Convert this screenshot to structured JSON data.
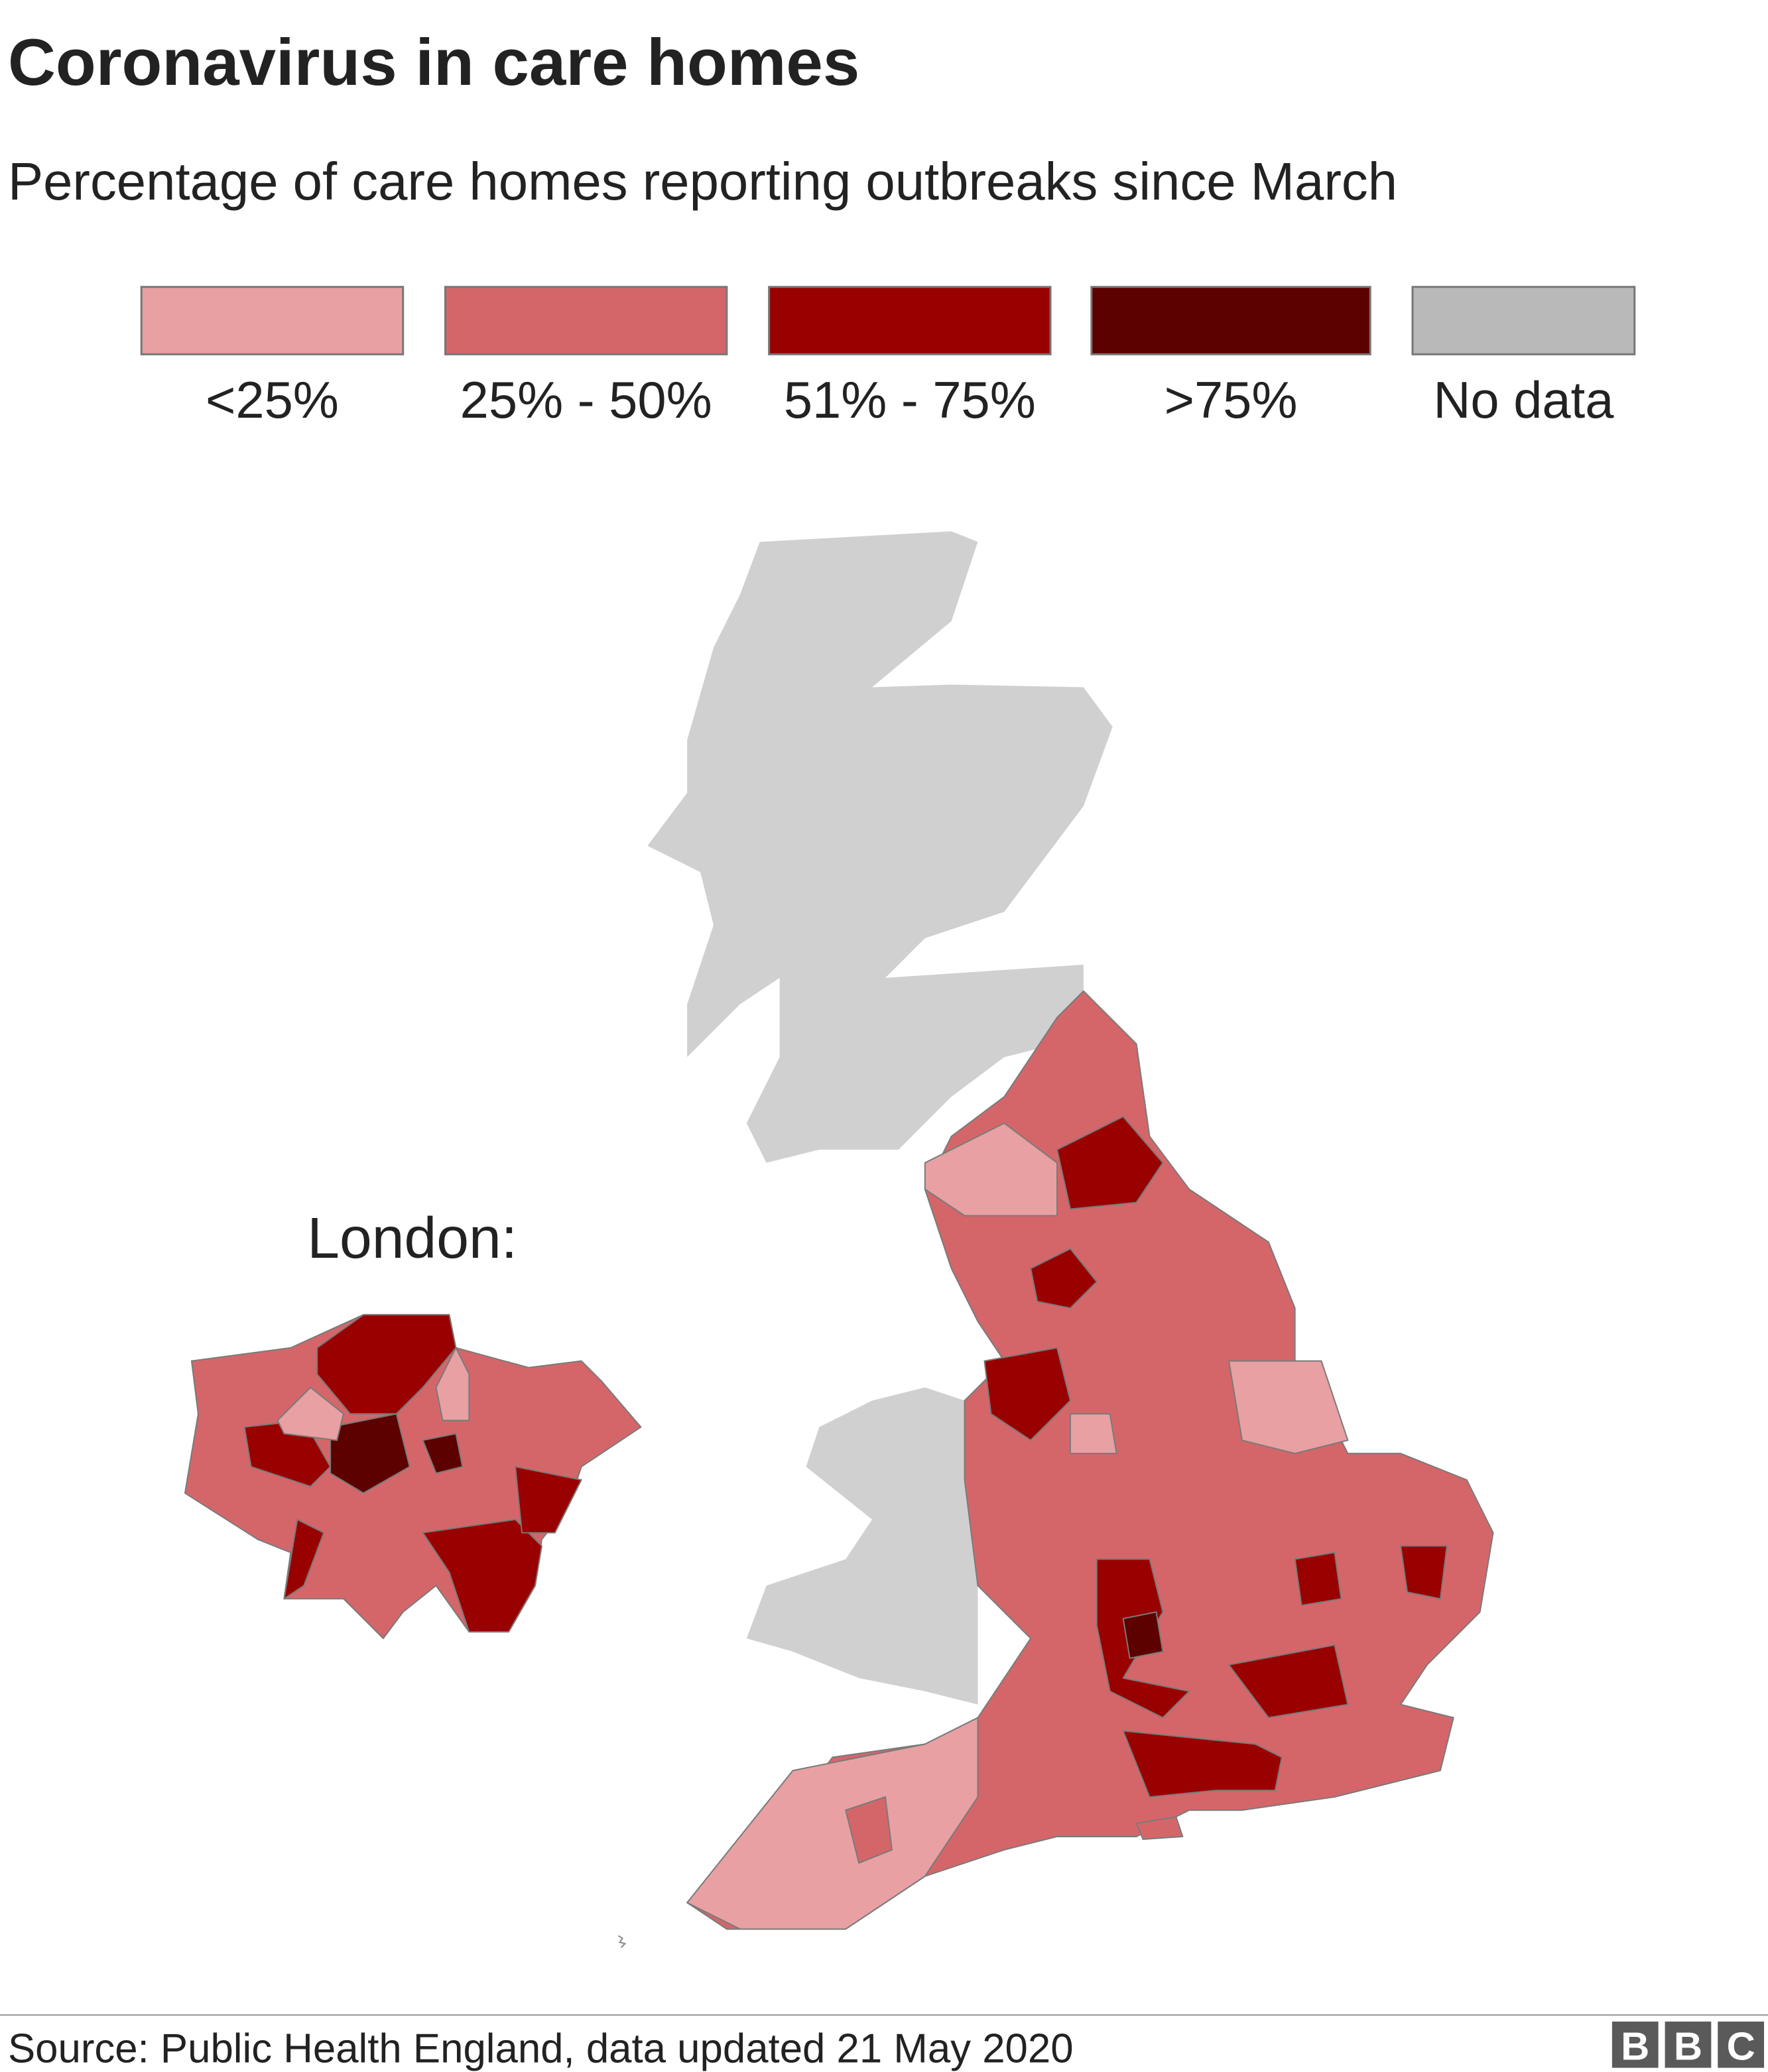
{
  "header": {
    "title": "Coronavirus in care homes",
    "subtitle": "Percentage of care homes reporting outbreaks since March"
  },
  "legend": [
    {
      "label": "<25%",
      "color": "#e8a0a2"
    },
    {
      "label": "25% - 50%",
      "color": "#d4666a"
    },
    {
      "label": "51% - 75%",
      "color": "#990000"
    },
    {
      "label": ">75%",
      "color": "#5c0000"
    },
    {
      "label": "No data",
      "color": "#b9b9b9"
    }
  ],
  "map": {
    "inset_label": "London:"
  },
  "footer": {
    "source": "Source: Public Health England, data updated 21 May 2020",
    "logo": [
      "B",
      "B",
      "C"
    ]
  }
}
